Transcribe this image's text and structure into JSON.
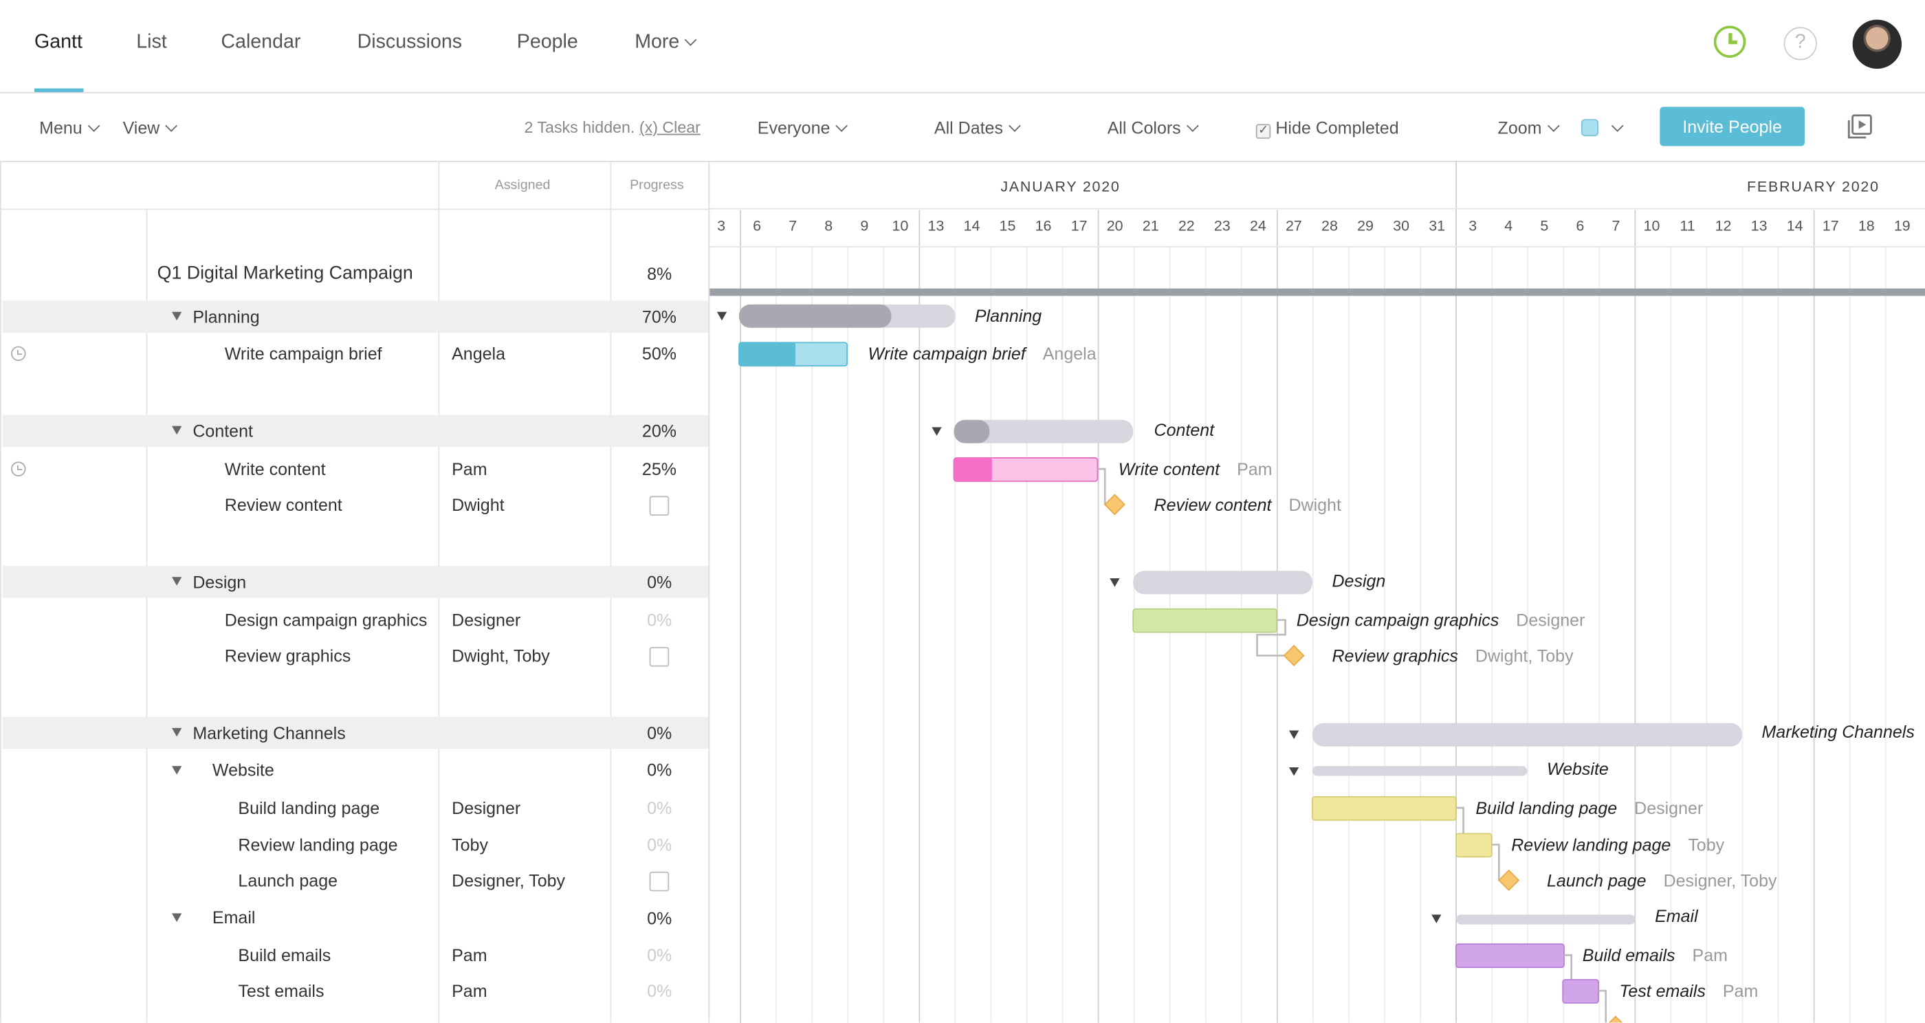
{
  "nav": {
    "tabs": [
      "Gantt",
      "List",
      "Calendar",
      "Discussions",
      "People",
      "More"
    ]
  },
  "toolbar": {
    "menu": "Menu",
    "view": "View",
    "tasks_hidden": "2 Tasks hidden.",
    "clear": "(x) Clear",
    "everyone": "Everyone",
    "all_dates": "All Dates",
    "all_colors": "All Colors",
    "hide_completed": "Hide Completed",
    "zoom": "Zoom",
    "invite": "Invite People"
  },
  "table": {
    "assigned_header": "Assigned",
    "progress_header": "Progress",
    "project": {
      "name": "Q1 Digital Marketing Campaign",
      "progress": "8%"
    },
    "rows": [
      {
        "name": "Planning",
        "assigned": "",
        "progress": "70%"
      },
      {
        "name": "Write campaign brief",
        "assigned": "Angela",
        "progress": "50%"
      },
      {
        "name": "Content",
        "assigned": "",
        "progress": "20%"
      },
      {
        "name": "Write content",
        "assigned": "Pam",
        "progress": "25%"
      },
      {
        "name": "Review content",
        "assigned": "Dwight",
        "progress": ""
      },
      {
        "name": "Design",
        "assigned": "",
        "progress": "0%"
      },
      {
        "name": "Design campaign graphics",
        "assigned": "Designer",
        "progress": "0%"
      },
      {
        "name": "Review graphics",
        "assigned": "Dwight, Toby",
        "progress": ""
      },
      {
        "name": "Marketing Channels",
        "assigned": "",
        "progress": "0%"
      },
      {
        "name": "Website",
        "assigned": "",
        "progress": "0%"
      },
      {
        "name": "Build landing page",
        "assigned": "Designer",
        "progress": "0%"
      },
      {
        "name": "Review landing page",
        "assigned": "Toby",
        "progress": "0%"
      },
      {
        "name": "Launch page",
        "assigned": "Designer, Toby",
        "progress": ""
      },
      {
        "name": "Email",
        "assigned": "",
        "progress": "0%"
      },
      {
        "name": "Build emails",
        "assigned": "Pam",
        "progress": "0%"
      },
      {
        "name": "Test emails",
        "assigned": "Pam",
        "progress": "0%"
      }
    ]
  },
  "gantt": {
    "months": [
      "JANUARY 2020",
      "FEBRUARY 2020"
    ],
    "days": [
      "3",
      "6",
      "7",
      "8",
      "9",
      "10",
      "13",
      "14",
      "15",
      "16",
      "17",
      "20",
      "21",
      "22",
      "23",
      "24",
      "27",
      "28",
      "29",
      "30",
      "31",
      "3",
      "4",
      "5",
      "6",
      "7",
      "10",
      "11",
      "12",
      "13",
      "14",
      "17",
      "18",
      "19"
    ],
    "colors": {
      "group": "#d6d6de",
      "group_progress": "#a8a8b0",
      "blue": "#5bbcd6",
      "blue_light": "#a9dfee",
      "pink": "#f56ec8",
      "pink_light": "#fbc3e8",
      "green": "#d3e6a6",
      "yellow": "#f1e79c",
      "purple": "#d2a4ea",
      "milestone": "#f7c66f"
    }
  }
}
